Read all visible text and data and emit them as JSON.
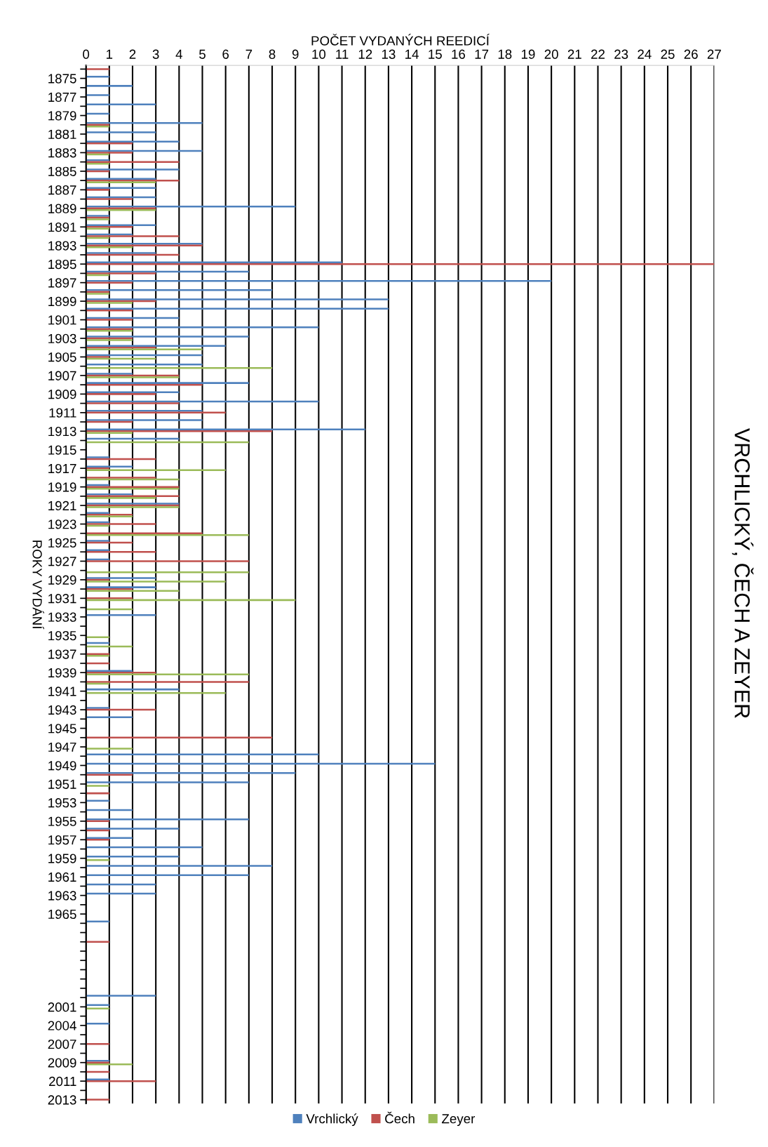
{
  "chart_data": {
    "type": "bar",
    "orientation": "horizontal",
    "title": "VRCHLICKÝ, ČECH A ZEYER",
    "xlabel": "POČET VYDANÝCH REEDICÍ",
    "ylabel": "ROKY VYDÁNÍ",
    "categories": [
      null,
      "1875",
      null,
      "1877",
      null,
      "1879",
      null,
      "1881",
      null,
      "1883",
      null,
      "1885",
      null,
      "1887",
      null,
      "1889",
      null,
      "1891",
      null,
      "1893",
      null,
      "1895",
      null,
      "1897",
      null,
      "1899",
      null,
      "1901",
      null,
      "1903",
      null,
      "1905",
      null,
      "1907",
      null,
      "1909",
      null,
      "1911",
      null,
      "1913",
      null,
      "1915",
      null,
      "1917",
      null,
      "1919",
      null,
      "1921",
      null,
      "1923",
      null,
      "1925",
      null,
      "1927",
      null,
      "1929",
      null,
      "1931",
      null,
      "1933",
      null,
      "1935",
      null,
      "1937",
      null,
      "1939",
      null,
      "1941",
      null,
      "1943",
      null,
      "1945",
      null,
      "1947",
      null,
      "1949",
      null,
      "1951",
      null,
      "1953",
      null,
      "1955",
      null,
      "1957",
      null,
      "1959",
      null,
      "1961",
      null,
      "1963",
      null,
      "1965",
      null,
      null,
      null,
      null,
      null,
      null,
      null,
      null,
      null,
      "2001",
      null,
      "2004",
      null,
      "2007",
      null,
      "2009",
      null,
      "2011",
      null,
      "2013"
    ],
    "series": [
      {
        "name": "Vrchlický",
        "color": "#4f81bd",
        "values": [
          null,
          1,
          2,
          1,
          3,
          1,
          5,
          3,
          4,
          5,
          1,
          4,
          3,
          3,
          3,
          9,
          1,
          3,
          2,
          5,
          3,
          11,
          7,
          20,
          8,
          13,
          13,
          4,
          10,
          7,
          6,
          5,
          5,
          2,
          7,
          4,
          10,
          5,
          5,
          12,
          4,
          null,
          1,
          2,
          null,
          1,
          2,
          4,
          1,
          1,
          null,
          1,
          1,
          1,
          null,
          3,
          3,
          null,
          null,
          3,
          null,
          null,
          1,
          null,
          null,
          2,
          null,
          4,
          null,
          1,
          2,
          null,
          null,
          null,
          10,
          15,
          9,
          7,
          null,
          1,
          2,
          7,
          4,
          2,
          5,
          4,
          8,
          7,
          3,
          3,
          null,
          null,
          1,
          null,
          null,
          null,
          null,
          null,
          null,
          null,
          3,
          1,
          null,
          1,
          null,
          null,
          null,
          1,
          null,
          1,
          null,
          null
        ]
      },
      {
        "name": "Čech",
        "color": "#c0504d",
        "values": [
          1,
          null,
          null,
          null,
          null,
          null,
          1,
          null,
          2,
          2,
          4,
          1,
          4,
          1,
          2,
          3,
          1,
          2,
          4,
          5,
          4,
          27,
          3,
          2,
          1,
          3,
          2,
          2,
          2,
          2,
          3,
          1,
          null,
          4,
          5,
          3,
          4,
          6,
          2,
          8,
          null,
          null,
          3,
          1,
          3,
          4,
          4,
          4,
          2,
          3,
          5,
          2,
          3,
          7,
          null,
          1,
          2,
          2,
          null,
          null,
          null,
          null,
          null,
          1,
          1,
          3,
          7,
          null,
          null,
          3,
          null,
          null,
          8,
          null,
          null,
          null,
          2,
          null,
          1,
          null,
          null,
          1,
          1,
          1,
          null,
          null,
          null,
          null,
          null,
          null,
          null,
          null,
          null,
          null,
          1,
          null,
          null,
          null,
          null,
          null,
          null,
          null,
          null,
          null,
          null,
          1,
          null,
          1,
          1,
          3,
          null,
          1
        ]
      },
      {
        "name": "Zeyer",
        "color": "#9bbb59",
        "values": [
          null,
          null,
          null,
          null,
          null,
          null,
          1,
          null,
          null,
          1,
          1,
          null,
          3,
          null,
          null,
          3,
          1,
          1,
          1,
          2,
          null,
          null,
          1,
          null,
          1,
          2,
          null,
          null,
          2,
          2,
          5,
          3,
          8,
          4,
          null,
          null,
          null,
          null,
          null,
          2,
          7,
          null,
          null,
          6,
          4,
          4,
          3,
          4,
          2,
          1,
          7,
          null,
          null,
          null,
          7,
          6,
          4,
          9,
          2,
          null,
          null,
          1,
          2,
          1,
          null,
          7,
          1,
          6,
          null,
          null,
          null,
          null,
          null,
          2,
          null,
          null,
          null,
          1,
          null,
          null,
          null,
          null,
          null,
          null,
          null,
          1,
          null,
          null,
          null,
          null,
          null,
          null,
          null,
          null,
          null,
          null,
          null,
          null,
          null,
          null,
          null,
          1,
          null,
          null,
          null,
          null,
          null,
          2,
          null,
          null,
          null,
          null
        ]
      }
    ],
    "xlim": [
      0,
      27
    ],
    "xticks": [
      0,
      1,
      2,
      3,
      4,
      5,
      6,
      7,
      8,
      9,
      10,
      11,
      12,
      13,
      14,
      15,
      16,
      17,
      18,
      19,
      20,
      21,
      22,
      23,
      24,
      25,
      26,
      27
    ],
    "grid": "x",
    "legend": "bottom"
  }
}
